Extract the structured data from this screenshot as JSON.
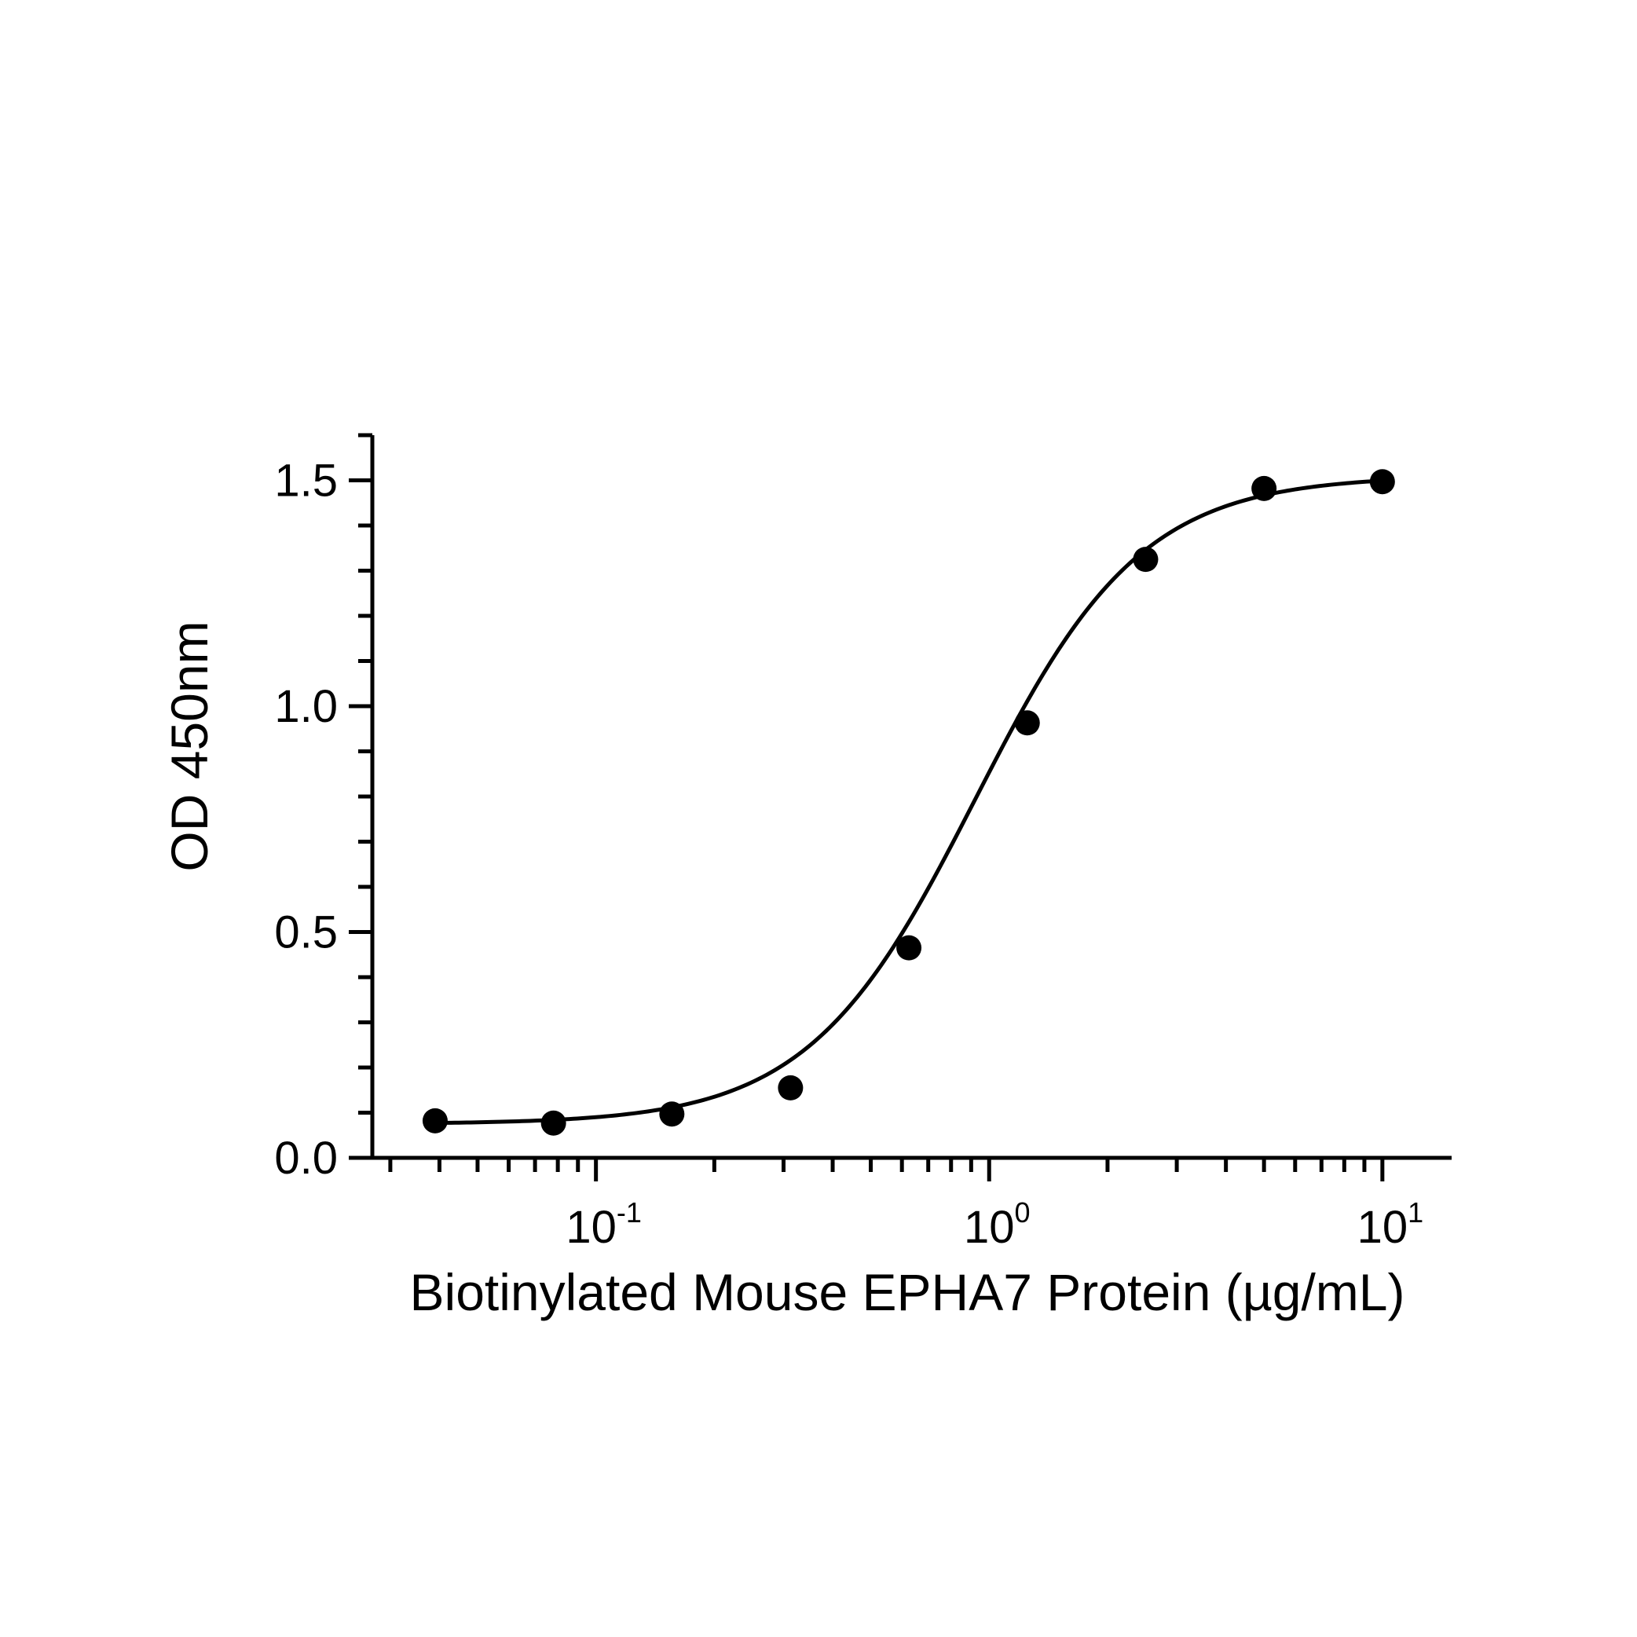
{
  "chart_data": {
    "type": "scatter",
    "xlabel": "Biotinylated Mouse EPHA7 Protein (µg/mL)",
    "ylabel": "OD 450nm",
    "x_scale": "log",
    "xlim": [
      0.027,
      15
    ],
    "ylim": [
      0,
      1.6
    ],
    "x_ticks": [
      {
        "value": 0.1,
        "base": "10",
        "exp": "-1"
      },
      {
        "value": 1,
        "base": "10",
        "exp": "0"
      },
      {
        "value": 10,
        "base": "10",
        "exp": "1"
      }
    ],
    "y_ticks": [
      {
        "value": 0,
        "label": "0.0"
      },
      {
        "value": 0.5,
        "label": "0.5"
      },
      {
        "value": 1.0,
        "label": "1.0"
      },
      {
        "value": 1.5,
        "label": "1.5"
      }
    ],
    "y_minor_step": 0.1,
    "grid": false,
    "marker_color": "#000000",
    "line_color": "#000000",
    "series": [
      {
        "x": [
          0.039,
          0.078,
          0.156,
          0.3125,
          0.625,
          1.25,
          2.5,
          5,
          10
        ],
        "y": [
          0.082,
          0.077,
          0.097,
          0.155,
          0.465,
          0.963,
          1.325,
          1.482,
          1.497
        ]
      }
    ]
  }
}
